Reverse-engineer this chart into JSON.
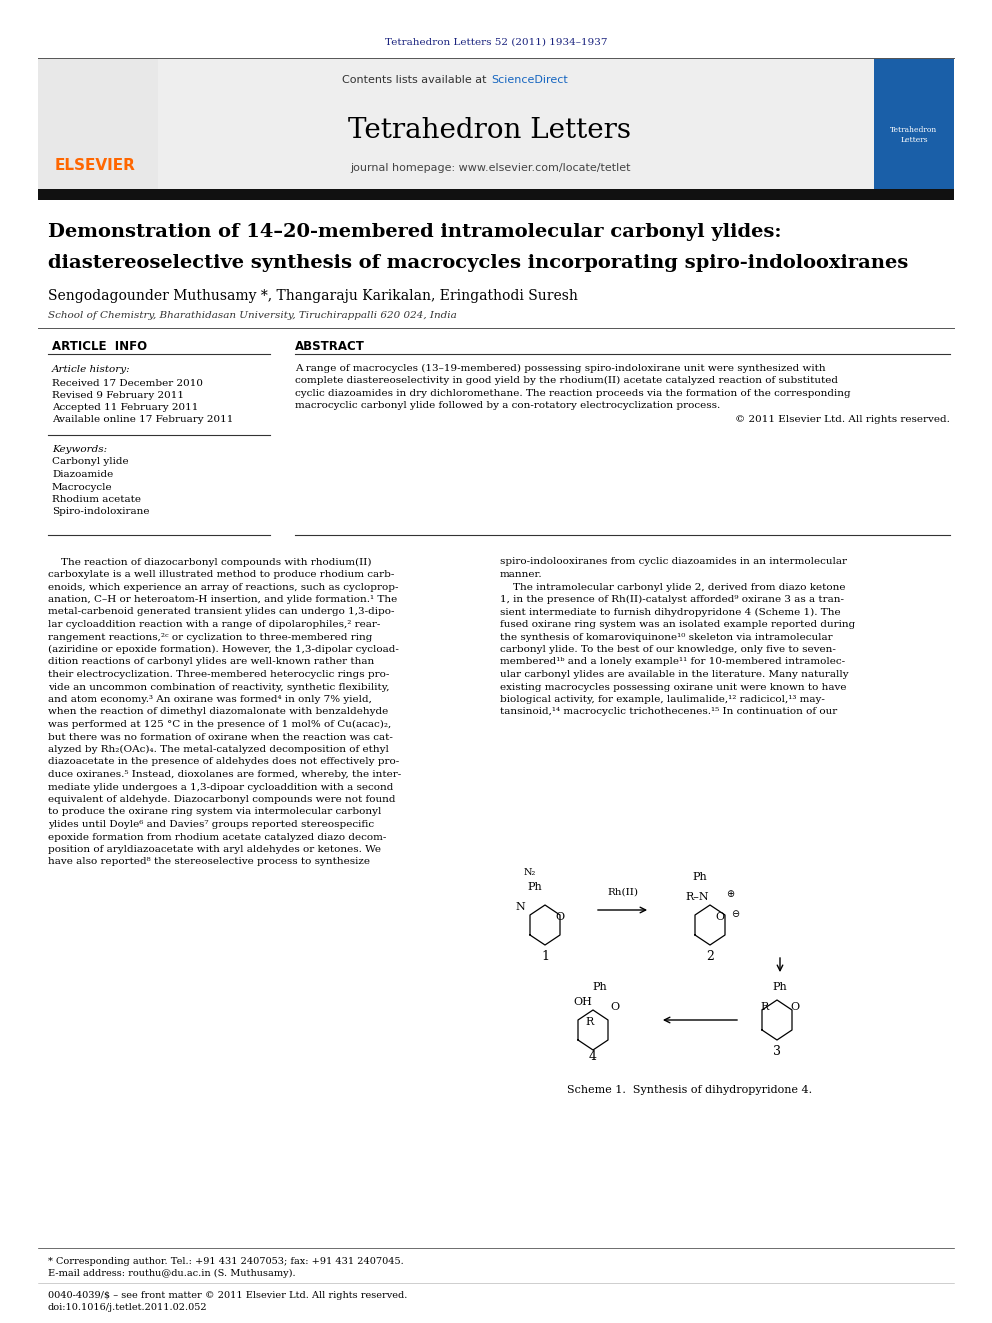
{
  "page_bg": "#ffffff",
  "journal_ref": "Tetrahedron Letters 52 (2011) 1934–1937",
  "journal_ref_color": "#1a237e",
  "header_bg": "#f0f0f0",
  "sciencedirect_color": "#1565c0",
  "journal_name": "Tetrahedron Letters",
  "journal_homepage": "journal homepage: www.elsevier.com/locate/tetlet",
  "elsevier_color": "#ff6600",
  "title_line1": "Demonstration of 14–20-membered intramolecular carbonyl ylides:",
  "title_line2": "diastereoselective synthesis of macrocycles incorporating spiro-indolooxiranes",
  "authors": "Sengodagounder Muthusamy *, Thangaraju Karikalan, Eringathodi Suresh",
  "affiliation": "School of Chemistry, Bharathidasan University, Tiruchirappalli 620 024, India",
  "article_info_header": "ARTICLE  INFO",
  "abstract_header": "ABSTRACT",
  "article_history_label": "Article history:",
  "received": "Received 17 December 2010",
  "revised": "Revised 9 February 2011",
  "accepted": "Accepted 11 February 2011",
  "available": "Available online 17 February 2011",
  "keywords_label": "Keywords:",
  "keywords": [
    "Carbonyl ylide",
    "Diazoamide",
    "Macrocycle",
    "Rhodium acetate",
    "Spiro-indoloxirane"
  ],
  "abstract_text_lines": [
    "A range of macrocycles (13–19-membered) possessing spiro-indoloxirane unit were synthesized with",
    "complete diastereoselectivity in good yield by the rhodium(II) acetate catalyzed reaction of substituted",
    "cyclic diazoamides in dry dichloromethane. The reaction proceeds via the formation of the corresponding",
    "macrocyclic carbonyl ylide followed by a con-rotatory electrocyclization process."
  ],
  "copyright": "© 2011 Elsevier Ltd. All rights reserved.",
  "body_col1_lines": [
    "    The reaction of diazocarbonyl compounds with rhodium(II)",
    "carboxylate is a well illustrated method to produce rhodium carb-",
    "enoids, which experience an array of reactions, such as cycloprop-",
    "anation, C–H or heteroatom-H insertion, and ylide formation.¹ The",
    "metal-carbenoid generated transient ylides can undergo 1,3-dipo-",
    "lar cycloaddition reaction with a range of dipolarophiles,² rear-",
    "rangement reactions,²ᶜ or cyclization to three-membered ring",
    "(aziridine or epoxide formation). However, the 1,3-dipolar cycload-",
    "dition reactions of carbonyl ylides are well-known rather than",
    "their electrocyclization. Three-membered heterocyclic rings pro-",
    "vide an uncommon combination of reactivity, synthetic flexibility,",
    "and atom economy.³ An oxirane was formed⁴ in only 7% yield,",
    "when the reaction of dimethyl diazomalonate with benzaldehyde",
    "was performed at 125 °C in the presence of 1 mol% of Cu(acac)₂,",
    "but there was no formation of oxirane when the reaction was cat-",
    "alyzed by Rh₂(OAc)₄. The metal-catalyzed decomposition of ethyl",
    "diazoacetate in the presence of aldehydes does not effectively pro-",
    "duce oxiranes.⁵ Instead, dioxolanes are formed, whereby, the inter-",
    "mediate ylide undergoes a 1,3-dipoar cycloaddition with a second",
    "equivalent of aldehyde. Diazocarbonyl compounds were not found",
    "to produce the oxirane ring system via intermolecular carbonyl",
    "ylides until Doyle⁶ and Davies⁷ groups reported stereospecific",
    "epoxide formation from rhodium acetate catalyzed diazo decom-",
    "position of aryldiazoacetate with aryl aldehydes or ketones. We",
    "have also reported⁸ the stereoselective process to synthesize"
  ],
  "body_col2_lines": [
    "spiro-indolooxiranes from cyclic diazoamides in an intermolecular",
    "manner.",
    "    The intramolecular carbonyl ylide 2, derived from diazo ketone",
    "1, in the presence of Rh(II)-catalyst afforded⁹ oxirane 3 as a tran-",
    "sient intermediate to furnish dihydropyridone 4 (Scheme 1). The",
    "fused oxirane ring system was an isolated example reported during",
    "the synthesis of komaroviquinone¹⁰ skeleton via intramolecular",
    "carbonyl ylide. To the best of our knowledge, only five to seven-",
    "membered¹ᵇ and a lonely example¹¹ for 10-membered intramolec-",
    "ular carbonyl ylides are available in the literature. Many naturally",
    "existing macrocycles possessing oxirane unit were known to have",
    "biological activity, for example, laulimalide,¹² radicicol,¹³ may-",
    "tansinoid,¹⁴ macrocyclic trichothecenes.¹⁵ In continuation of our"
  ],
  "scheme_label": "Scheme 1.  Synthesis of dihydropyridone 4.",
  "footer_line1": "* Corresponding author. Tel.: +91 431 2407053; fax: +91 431 2407045.",
  "footer_line2": "E-mail address: routhu@du.ac.in (S. Muthusamy).",
  "footer_line3": "0040-4039/$ – see front matter © 2011 Elsevier Ltd. All rights reserved.",
  "footer_line4": "doi:10.1016/j.tetlet.2011.02.052"
}
